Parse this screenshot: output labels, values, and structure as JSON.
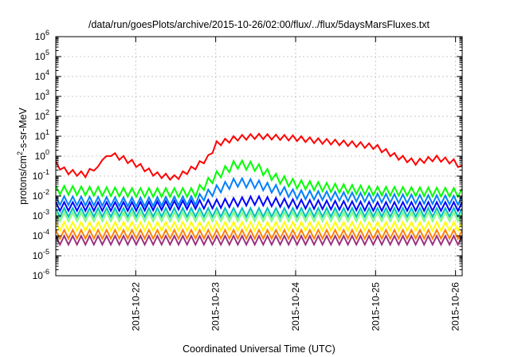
{
  "chart_data": {
    "type": "line",
    "title": "/data/run/goesPlots/archive/2015-10-26/02:00/flux/../flux/5daysMarsFluxes.txt",
    "xlabel": "Coordinated Universal Time (UTC)",
    "ylabel": "protons/cm2-s-sr-MeV",
    "ylabel_parts": {
      "pre": "protons/cm",
      "sup": "2",
      "post": "-s-sr-MeV"
    },
    "y_scale": "log",
    "ylim": [
      1e-06,
      1000000.0
    ],
    "xlim": [
      "2015-10-21T00:00",
      "2015-10-26T02:00"
    ],
    "grid": true,
    "x_ticks": [
      {
        "at": "2015-10-22T00:00",
        "label": "2015-10-22"
      },
      {
        "at": "2015-10-23T00:00",
        "label": "2015-10-23"
      },
      {
        "at": "2015-10-24T00:00",
        "label": "2015-10-24"
      },
      {
        "at": "2015-10-25T00:00",
        "label": "2015-10-25"
      },
      {
        "at": "2015-10-26T00:00",
        "label": "2015-10-26"
      }
    ],
    "y_ticks": [
      {
        "base": "10",
        "exp": "-6"
      },
      {
        "base": "10",
        "exp": "-5"
      },
      {
        "base": "10",
        "exp": "-4"
      },
      {
        "base": "10",
        "exp": "-3"
      },
      {
        "base": "10",
        "exp": "-2"
      },
      {
        "base": "10",
        "exp": "-1"
      },
      {
        "base": "10",
        "exp": "0"
      },
      {
        "base": "10",
        "exp": "1"
      },
      {
        "base": "10",
        "exp": "2"
      },
      {
        "base": "10",
        "exp": "3"
      },
      {
        "base": "10",
        "exp": "4"
      },
      {
        "base": "10",
        "exp": "5"
      },
      {
        "base": "10",
        "exp": "6"
      }
    ],
    "series": [
      {
        "color": "#ff0000",
        "x": [
          "2015-10-21T00:00",
          "2015-10-21T03:00",
          "2015-10-21T06:00",
          "2015-10-21T09:00",
          "2015-10-21T12:00",
          "2015-10-21T13:00",
          "2015-10-21T14:00",
          "2015-10-21T15:00",
          "2015-10-21T16:00",
          "2015-10-21T18:00",
          "2015-10-21T20:00",
          "2015-10-22T00:00",
          "2015-10-22T06:00",
          "2015-10-22T12:00",
          "2015-10-22T18:00",
          "2015-10-22T22:00",
          "2015-10-23T00:00",
          "2015-10-23T06:00",
          "2015-10-23T12:00",
          "2015-10-23T18:00",
          "2015-10-24T00:00",
          "2015-10-24T06:00",
          "2015-10-24T12:00",
          "2015-10-24T18:00",
          "2015-10-25T00:00",
          "2015-10-25T06:00",
          "2015-10-25T12:00",
          "2015-10-25T18:00",
          "2015-10-26T00:00",
          "2015-10-26T02:00"
        ],
        "y": [
          0.4,
          0.18,
          0.14,
          0.12,
          0.3,
          0.2,
          0.9,
          0.6,
          1.5,
          1.0,
          0.8,
          0.4,
          0.12,
          0.08,
          0.3,
          0.9,
          4,
          8,
          10,
          9,
          8,
          6,
          5,
          4,
          3,
          1,
          0.5,
          0.8,
          0.5,
          0.25
        ]
      },
      {
        "color": "#00ff00",
        "x": [
          "2015-10-21T00:00",
          "2015-10-22T00:00",
          "2015-10-22T18:00",
          "2015-10-23T00:00",
          "2015-10-23T06:00",
          "2015-10-23T12:00",
          "2015-10-23T18:00",
          "2015-10-24T00:00",
          "2015-10-24T12:00",
          "2015-10-25T00:00",
          "2015-10-26T02:00"
        ],
        "y": [
          0.02,
          0.015,
          0.015,
          0.1,
          0.4,
          0.3,
          0.08,
          0.04,
          0.025,
          0.018,
          0.015
        ]
      },
      {
        "color": "#0080ff",
        "x": [
          "2015-10-21T00:00",
          "2015-10-22T00:00",
          "2015-10-22T18:00",
          "2015-10-23T00:00",
          "2015-10-23T06:00",
          "2015-10-23T12:00",
          "2015-10-24T00:00",
          "2015-10-25T00:00",
          "2015-10-26T02:00"
        ],
        "y": [
          0.006,
          0.005,
          0.006,
          0.02,
          0.05,
          0.04,
          0.012,
          0.008,
          0.006
        ]
      },
      {
        "color": "#0000ff",
        "x": [
          "2015-10-21T00:00",
          "2015-10-22T00:00",
          "2015-10-23T00:00",
          "2015-10-23T12:00",
          "2015-10-24T00:00",
          "2015-10-25T00:00",
          "2015-10-26T02:00"
        ],
        "y": [
          0.003,
          0.003,
          0.004,
          0.006,
          0.004,
          0.003,
          0.003
        ]
      },
      {
        "color": "#00bfbf",
        "x": [
          "2015-10-21T00:00",
          "2015-10-26T02:00"
        ],
        "y": [
          0.0015,
          0.0015
        ]
      },
      {
        "color": "#80ff80",
        "x": [
          "2015-10-21T00:00",
          "2015-10-26T02:00"
        ],
        "y": [
          0.0009,
          0.0009
        ]
      },
      {
        "color": "#ffff00",
        "x": [
          "2015-10-21T00:00",
          "2015-10-26T02:00"
        ],
        "y": [
          0.0003,
          0.0003
        ]
      },
      {
        "color": "#ff8000",
        "x": [
          "2015-10-21T00:00",
          "2015-10-26T02:00"
        ],
        "y": [
          0.00012,
          0.00012
        ]
      },
      {
        "color": "#9b3080",
        "x": [
          "2015-10-21T00:00",
          "2015-10-26T02:00"
        ],
        "y": [
          6e-05,
          6e-05
        ]
      }
    ]
  }
}
